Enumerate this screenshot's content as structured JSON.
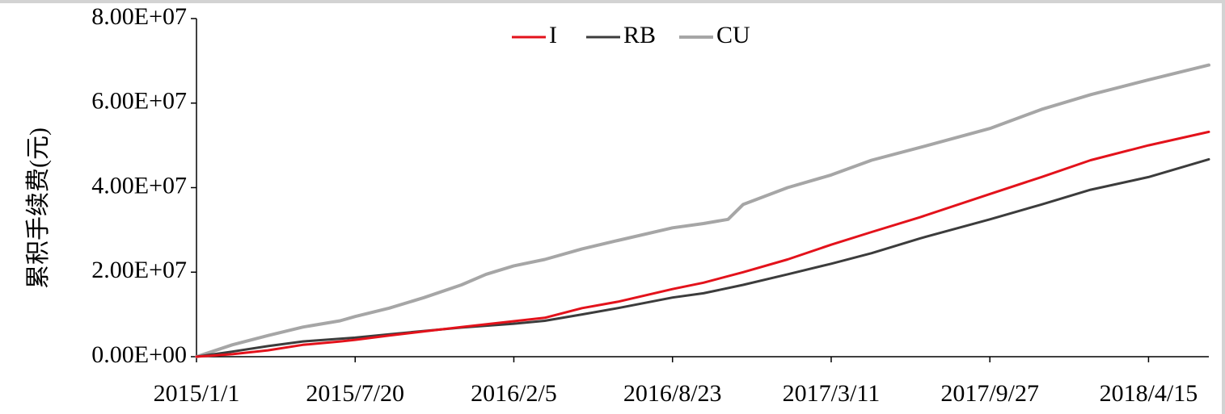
{
  "chart_data": {
    "type": "line",
    "ylabel": "累积手续费(元)",
    "xlabel": "",
    "title": "",
    "x_ticks": [
      "2015/1/1",
      "2015/7/20",
      "2016/2/5",
      "2016/8/23",
      "2017/3/11",
      "2017/9/27",
      "2018/4/15"
    ],
    "y_ticks": [
      "0.00E+00",
      "2.00E+07",
      "4.00E+07",
      "6.00E+07",
      "8.00E+07"
    ],
    "ylim": [
      0,
      80000000
    ],
    "xlim": [
      "2015/1/1",
      "2018/6/30"
    ],
    "legend_position": "top-center",
    "grid": false,
    "series": [
      {
        "name": "I",
        "color": "#e3121b",
        "points": [
          [
            "2015/1/1",
            0
          ],
          [
            "2015/2/15",
            600000
          ],
          [
            "2015/4/1",
            1500000
          ],
          [
            "2015/5/15",
            2800000
          ],
          [
            "2015/7/1",
            3600000
          ],
          [
            "2015/7/20",
            4000000
          ],
          [
            "2015/9/1",
            5000000
          ],
          [
            "2015/10/15",
            6000000
          ],
          [
            "2015/12/1",
            7000000
          ],
          [
            "2016/2/5",
            8400000
          ],
          [
            "2016/3/15",
            9200000
          ],
          [
            "2016/5/1",
            11500000
          ],
          [
            "2016/6/15",
            13000000
          ],
          [
            "2016/8/23",
            16000000
          ],
          [
            "2016/10/1",
            17500000
          ],
          [
            "2016/11/20",
            20000000
          ],
          [
            "2017/1/15",
            23000000
          ],
          [
            "2017/3/11",
            26500000
          ],
          [
            "2017/5/1",
            29500000
          ],
          [
            "2017/7/1",
            33000000
          ],
          [
            "2017/9/27",
            38500000
          ],
          [
            "2017/12/1",
            42500000
          ],
          [
            "2018/2/1",
            46500000
          ],
          [
            "2018/4/15",
            50000000
          ],
          [
            "2018/6/30",
            53200000
          ]
        ]
      },
      {
        "name": "RB",
        "color": "#3c3c3c",
        "points": [
          [
            "2015/1/1",
            0
          ],
          [
            "2015/2/15",
            1200000
          ],
          [
            "2015/4/1",
            2500000
          ],
          [
            "2015/5/15",
            3600000
          ],
          [
            "2015/7/20",
            4500000
          ],
          [
            "2015/9/1",
            5300000
          ],
          [
            "2015/10/15",
            6100000
          ],
          [
            "2015/12/1",
            6900000
          ],
          [
            "2016/2/5",
            7800000
          ],
          [
            "2016/3/15",
            8500000
          ],
          [
            "2016/5/1",
            10000000
          ],
          [
            "2016/6/15",
            11500000
          ],
          [
            "2016/8/23",
            14000000
          ],
          [
            "2016/10/1",
            15000000
          ],
          [
            "2016/11/20",
            17000000
          ],
          [
            "2017/1/15",
            19500000
          ],
          [
            "2017/3/11",
            22000000
          ],
          [
            "2017/5/1",
            24500000
          ],
          [
            "2017/7/1",
            28000000
          ],
          [
            "2017/9/27",
            32500000
          ],
          [
            "2017/12/1",
            36000000
          ],
          [
            "2018/2/1",
            39500000
          ],
          [
            "2018/4/15",
            42500000
          ],
          [
            "2018/6/30",
            46700000
          ]
        ]
      },
      {
        "name": "CU",
        "color": "#a6a6a6",
        "points": [
          [
            "2015/1/1",
            0
          ],
          [
            "2015/2/15",
            2800000
          ],
          [
            "2015/4/1",
            5000000
          ],
          [
            "2015/5/15",
            7000000
          ],
          [
            "2015/7/1",
            8500000
          ],
          [
            "2015/7/20",
            9500000
          ],
          [
            "2015/9/1",
            11500000
          ],
          [
            "2015/10/15",
            14000000
          ],
          [
            "2015/12/1",
            17000000
          ],
          [
            "2016/1/1",
            19500000
          ],
          [
            "2016/2/5",
            21500000
          ],
          [
            "2016/3/15",
            23000000
          ],
          [
            "2016/5/1",
            25500000
          ],
          [
            "2016/6/15",
            27500000
          ],
          [
            "2016/8/23",
            30500000
          ],
          [
            "2016/10/1",
            31500000
          ],
          [
            "2016/11/1",
            32500000
          ],
          [
            "2016/11/20",
            36000000
          ],
          [
            "2017/1/15",
            40000000
          ],
          [
            "2017/3/11",
            43000000
          ],
          [
            "2017/5/1",
            46500000
          ],
          [
            "2017/7/1",
            49500000
          ],
          [
            "2017/9/27",
            54000000
          ],
          [
            "2017/12/1",
            58500000
          ],
          [
            "2018/2/1",
            62000000
          ],
          [
            "2018/4/15",
            65500000
          ],
          [
            "2018/6/30",
            69000000
          ]
        ]
      }
    ]
  }
}
